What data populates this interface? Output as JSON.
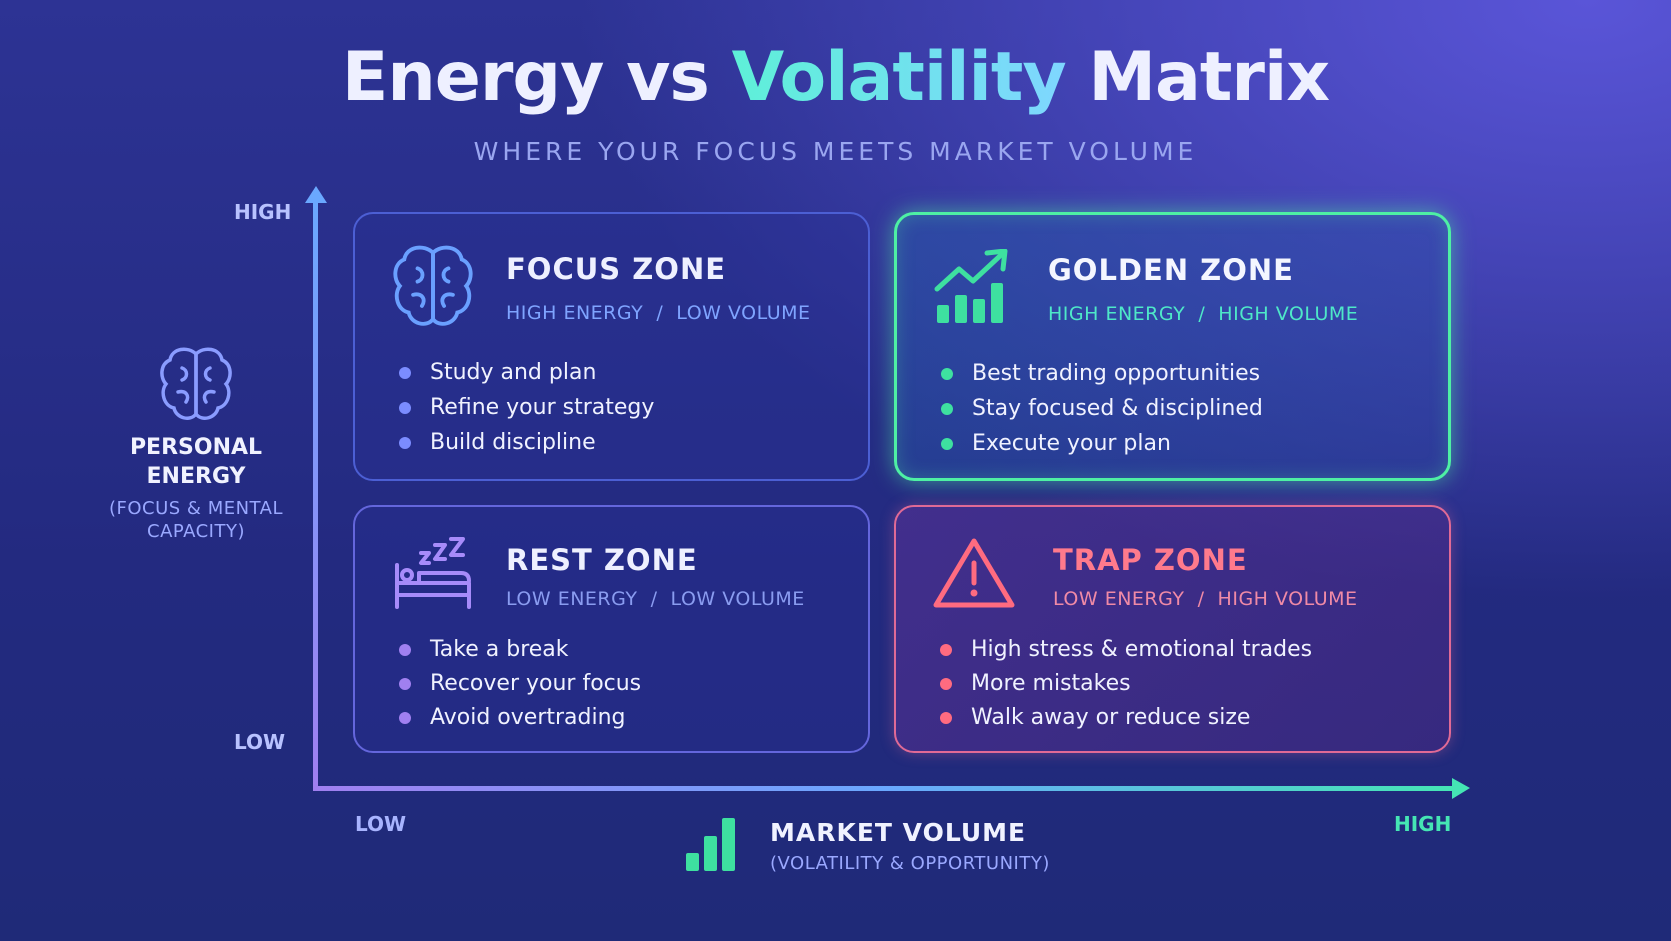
{
  "header": {
    "title": {
      "part1": "Energy vs",
      "highlight": "Volatility",
      "part2": "Matrix"
    },
    "subtitle": "WHERE YOUR FOCUS MEETS MARKET VOLUME"
  },
  "y_axis": {
    "high": "HIGH",
    "low": "LOW",
    "label": "PERSONAL ENERGY",
    "sublabel": "(FOCUS & MENTAL CAPACITY)"
  },
  "x_axis": {
    "low": "LOW",
    "high": "HIGH",
    "label": "MARKET VOLUME",
    "sublabel": "(VOLATILITY & OPPORTUNITY)"
  },
  "quadrants": [
    {
      "title": "FOCUS ZONE",
      "subtitle": "HIGH ENERGY  /  LOW VOLUME",
      "items": [
        "Study and plan",
        "Refine your strategy",
        "Build discipline"
      ]
    },
    {
      "title": "GOLDEN ZONE",
      "subtitle": "HIGH ENERGY  /  HIGH VOLUME",
      "items": [
        "Best trading opportunities",
        "Stay focused & disciplined",
        "Execute your plan"
      ]
    },
    {
      "title": "REST ZONE",
      "subtitle": "LOW ENERGY  /  LOW VOLUME",
      "items": [
        "Take a break",
        "Recover your focus",
        "Avoid overtrading"
      ]
    },
    {
      "title": "TRAP ZONE",
      "subtitle": "LOW ENERGY  /  HIGH VOLUME",
      "items": [
        "High stress & emotional trades",
        "More mistakes",
        "Walk away or reduce size"
      ]
    }
  ]
}
